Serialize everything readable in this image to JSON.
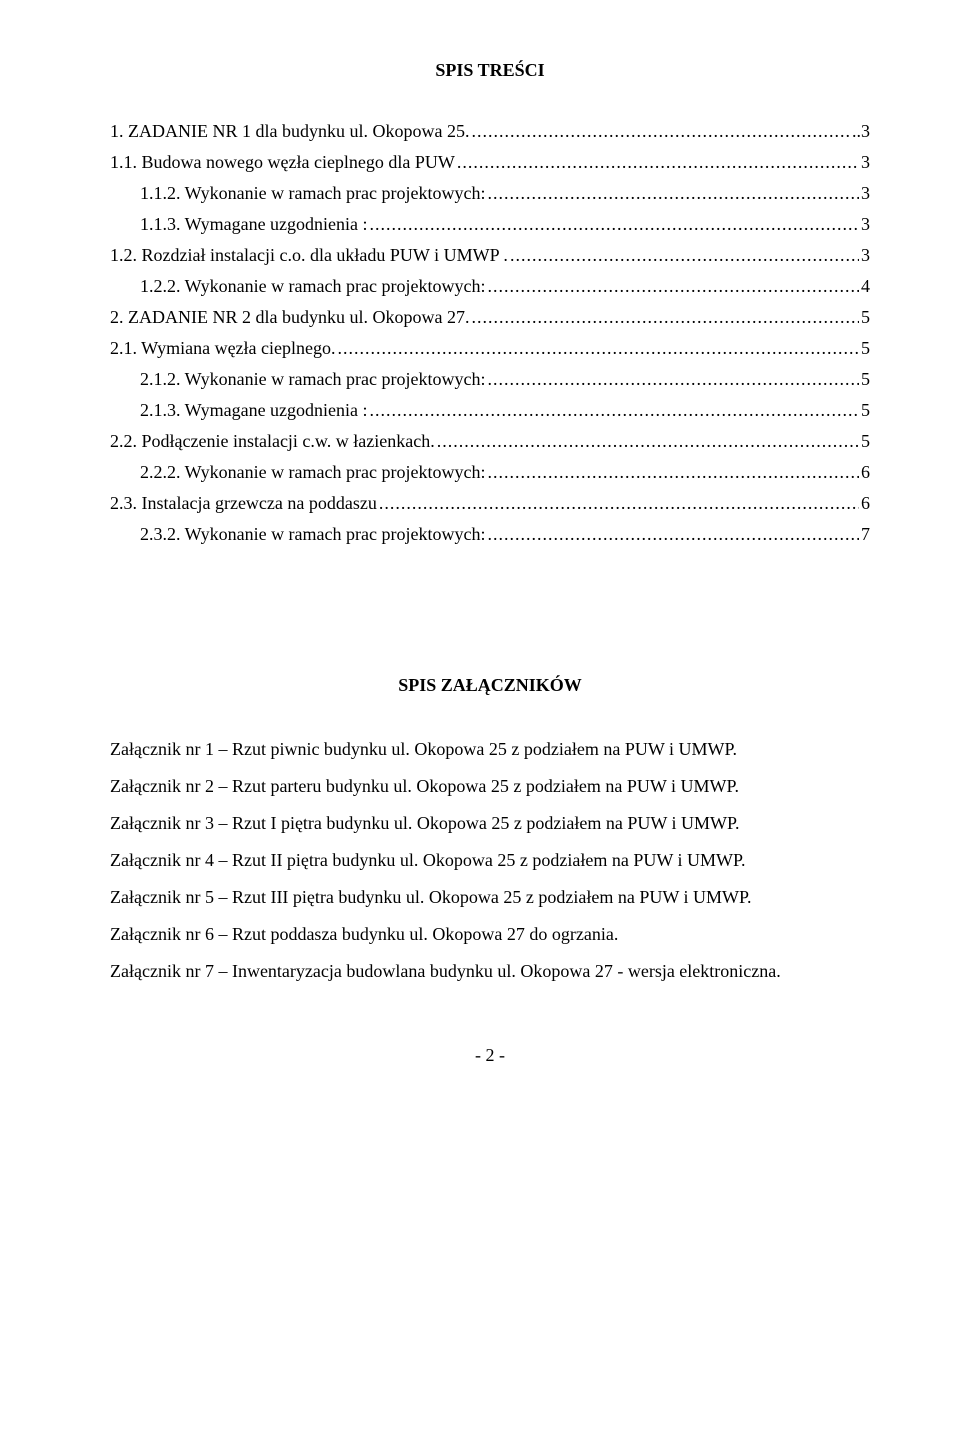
{
  "title": "SPIS TREŚCI",
  "toc": [
    {
      "indent": 0,
      "label": "1.    ZADANIE NR 1 dla budynku ul. Okopowa 25.",
      "page": "..3",
      "leader": true
    },
    {
      "indent": 0,
      "label": "1.1.    Budowa nowego węzła cieplnego dla PUW",
      "page": "3",
      "leader": true
    },
    {
      "indent": 1,
      "label": "1.1.2.   Wykonanie w ramach prac  projektowych:",
      "page": "3",
      "leader": true
    },
    {
      "indent": 1,
      "label": "1.1.3.   Wymagane uzgodnienia :",
      "page": "3",
      "leader": true
    },
    {
      "indent": 0,
      "label": "1.2.    Rozdział instalacji c.o. dla układu PUW i UMWP .",
      "page": "3",
      "leader": true
    },
    {
      "indent": 1,
      "label": "1.2.2.   Wykonanie w ramach prac  projektowych:",
      "page": "4",
      "leader": true
    },
    {
      "indent": 0,
      "label": "2.    ZADANIE NR 2 dla budynku ul. Okopowa 27.",
      "page": " 5",
      "leader": true
    },
    {
      "indent": 0,
      "label": "2.1.    Wymiana węzła cieplnego. ",
      "page": "5",
      "leader": true
    },
    {
      "indent": 1,
      "label": "2.1.2.   Wykonanie w ramach prac  projektowych:",
      "page": "5",
      "leader": true
    },
    {
      "indent": 1,
      "label": "2.1.3.   Wymagane uzgodnienia :",
      "page": "5",
      "leader": true
    },
    {
      "indent": 0,
      "label": "2.2.    Podłączenie instalacji c.w. w łazienkach. ",
      "page": "5",
      "leader": true
    },
    {
      "indent": 1,
      "label": "2.2.2.   Wykonanie w ramach prac  projektowych:",
      "page": "6",
      "leader": true
    },
    {
      "indent": 0,
      "label": "2.3.    Instalacja grzewcza na poddaszu",
      "page": "6",
      "leader": true
    },
    {
      "indent": 1,
      "label": "2.3.2.   Wykonanie w ramach prac  projektowych:",
      "page": "7",
      "leader": true
    }
  ],
  "subtitle": "SPIS ZAŁĄCZNIKÓW",
  "attachments": [
    "Załącznik nr 1 – Rzut piwnic budynku ul. Okopowa 25 z podziałem na PUW i UMWP.",
    "Załącznik nr 2 – Rzut parteru budynku ul. Okopowa 25 z podziałem na PUW i UMWP.",
    "Załącznik nr 3 – Rzut I piętra budynku ul. Okopowa 25 z podziałem na PUW i UMWP.",
    "Załącznik nr 4 – Rzut II piętra budynku ul. Okopowa 25 z podziałem na PUW i UMWP.",
    "Załącznik nr 5 – Rzut III piętra budynku ul. Okopowa 25 z podziałem na PUW i UMWP.",
    "Załącznik nr 6 – Rzut poddasza budynku ul. Okopowa 27 do ogrzania.",
    "Załącznik nr 7 – Inwentaryzacja budowlana budynku ul. Okopowa 27 - wersja elektroniczna."
  ],
  "footer": "- 2 -",
  "colors": {
    "text": "#000000",
    "background": "#ffffff"
  },
  "typography": {
    "font_family": "Times New Roman",
    "body_size_pt": 12,
    "title_weight": "bold"
  }
}
